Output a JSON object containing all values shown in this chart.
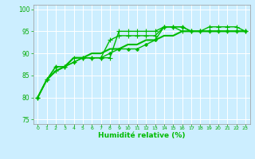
{
  "xlabel": "Humidité relative (%)",
  "bg_color": "#cceeff",
  "grid_color": "#ffffff",
  "line_color": "#00bb00",
  "tick_color": "#00aa00",
  "xlim": [
    -0.5,
    23.5
  ],
  "ylim": [
    74,
    101
  ],
  "yticks": [
    75,
    80,
    85,
    90,
    95,
    100
  ],
  "xticks": [
    0,
    1,
    2,
    3,
    4,
    5,
    6,
    7,
    8,
    9,
    10,
    11,
    12,
    13,
    14,
    15,
    16,
    17,
    18,
    19,
    20,
    21,
    22,
    23
  ],
  "xtick_labels": [
    "0",
    "1",
    "2",
    "3",
    "4",
    "5",
    "6",
    "7",
    "8",
    "9",
    "10",
    "11",
    "12",
    "13",
    "14",
    "15",
    "16",
    "17",
    "18",
    "19",
    "20",
    "21",
    "22",
    "23"
  ],
  "series": [
    {
      "y": [
        80,
        84,
        86,
        87,
        88,
        89,
        89,
        89,
        89,
        95,
        95,
        95,
        95,
        95,
        96,
        96,
        95,
        95,
        95,
        96,
        96,
        96,
        96,
        95
      ],
      "marker": "+",
      "lw": 1.0,
      "ms": 4
    },
    {
      "y": [
        80,
        84,
        87,
        87,
        89,
        89,
        89,
        89,
        93,
        94,
        94,
        94,
        94,
        94,
        96,
        96,
        96,
        95,
        95,
        95,
        95,
        95,
        95,
        95
      ],
      "marker": "+",
      "lw": 1.0,
      "ms": 4
    },
    {
      "y": [
        80,
        84,
        87,
        87,
        88,
        89,
        89,
        89,
        90,
        91,
        91,
        91,
        92,
        93,
        96,
        96,
        96,
        95,
        95,
        95,
        95,
        95,
        95,
        95
      ],
      "marker": "D",
      "lw": 1.0,
      "ms": 2
    },
    {
      "y": [
        80,
        84,
        86,
        87,
        89,
        89,
        90,
        90,
        91,
        91,
        92,
        92,
        93,
        93,
        94,
        94,
        95,
        95,
        95,
        95,
        95,
        95,
        95,
        95
      ],
      "marker": null,
      "lw": 1.5,
      "ms": 0
    }
  ]
}
